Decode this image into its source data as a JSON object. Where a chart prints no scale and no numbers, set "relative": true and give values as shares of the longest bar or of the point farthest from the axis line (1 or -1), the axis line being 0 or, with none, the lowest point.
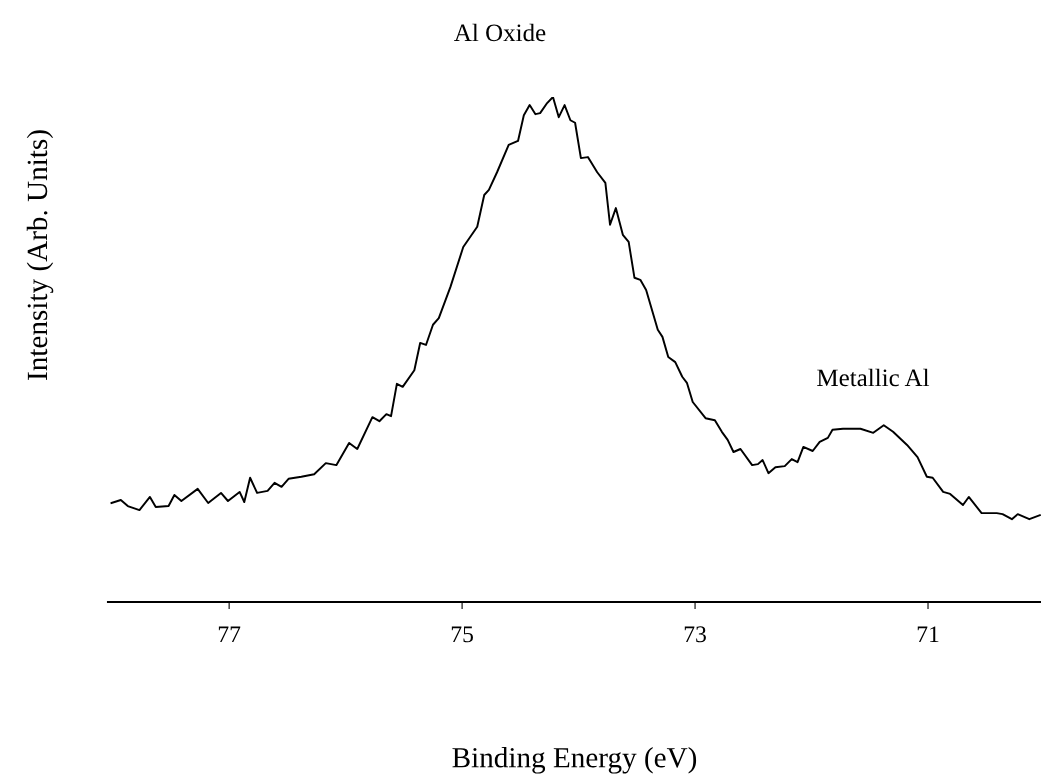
{
  "chart_data": {
    "type": "line",
    "xlabel": "Binding Energy (eV)",
    "ylabel": "Intensity (Arb. Units)",
    "relative": true,
    "xlim": [
      78.04,
      70.03
    ],
    "xticks": [
      77,
      75,
      73,
      71
    ],
    "grid": false,
    "legend": false,
    "marker": "none",
    "line_style": "solid",
    "annotations": [
      "Al Oxide",
      "Metallic Al"
    ],
    "series": [
      {
        "color": "#000000",
        "x": [
          78.01,
          77.93,
          77.87,
          77.77,
          77.68,
          77.63,
          77.52,
          77.47,
          77.41,
          77.27,
          77.18,
          77.07,
          77.01,
          76.91,
          76.87,
          76.82,
          76.76,
          76.67,
          76.61,
          76.55,
          76.49,
          76.38,
          76.27,
          76.17,
          76.08,
          75.97,
          75.9,
          75.77,
          75.71,
          75.65,
          75.61,
          75.56,
          75.51,
          75.41,
          75.36,
          75.31,
          75.25,
          75.2,
          75.1,
          74.99,
          74.87,
          74.81,
          74.77,
          74.7,
          74.6,
          74.52,
          74.47,
          74.42,
          74.37,
          74.33,
          74.27,
          74.22,
          74.17,
          74.12,
          74.07,
          74.03,
          73.98,
          73.92,
          73.84,
          73.77,
          73.73,
          73.68,
          73.62,
          73.57,
          73.52,
          73.47,
          73.42,
          73.32,
          73.28,
          73.23,
          73.17,
          73.11,
          73.07,
          73.02,
          72.91,
          72.83,
          72.77,
          72.72,
          72.67,
          72.61,
          72.51,
          72.46,
          72.42,
          72.37,
          72.31,
          72.23,
          72.17,
          72.12,
          72.07,
          71.99,
          71.93,
          71.86,
          71.82,
          71.73,
          71.58,
          71.47,
          71.38,
          71.3,
          71.18,
          71.09,
          71.01,
          70.96,
          70.87,
          70.81,
          70.7,
          70.65,
          70.54,
          70.41,
          70.36,
          70.28,
          70.23,
          70.13,
          70.04
        ],
        "values": [
          0.196,
          0.202,
          0.19,
          0.182,
          0.208,
          0.188,
          0.19,
          0.212,
          0.2,
          0.224,
          0.196,
          0.216,
          0.2,
          0.218,
          0.198,
          0.246,
          0.216,
          0.22,
          0.236,
          0.228,
          0.244,
          0.248,
          0.253,
          0.275,
          0.271,
          0.315,
          0.303,
          0.366,
          0.358,
          0.372,
          0.368,
          0.432,
          0.426,
          0.459,
          0.513,
          0.509,
          0.549,
          0.562,
          0.624,
          0.703,
          0.743,
          0.806,
          0.816,
          0.851,
          0.905,
          0.913,
          0.964,
          0.984,
          0.966,
          0.968,
          0.988,
          1.0,
          0.96,
          0.984,
          0.954,
          0.949,
          0.879,
          0.881,
          0.851,
          0.83,
          0.747,
          0.78,
          0.727,
          0.713,
          0.642,
          0.638,
          0.618,
          0.539,
          0.525,
          0.485,
          0.475,
          0.446,
          0.434,
          0.396,
          0.364,
          0.36,
          0.337,
          0.321,
          0.297,
          0.303,
          0.271,
          0.273,
          0.281,
          0.255,
          0.267,
          0.269,
          0.283,
          0.277,
          0.307,
          0.299,
          0.317,
          0.325,
          0.341,
          0.343,
          0.343,
          0.335,
          0.35,
          0.337,
          0.311,
          0.287,
          0.248,
          0.246,
          0.218,
          0.214,
          0.192,
          0.208,
          0.176,
          0.176,
          0.174,
          0.164,
          0.174,
          0.164,
          0.172
        ]
      }
    ]
  }
}
